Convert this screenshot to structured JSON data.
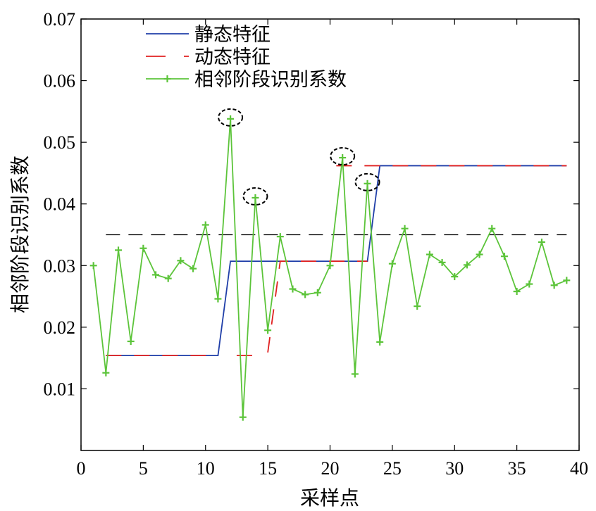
{
  "chart_data": {
    "type": "line",
    "xlabel": "采样点",
    "ylabel": "相邻阶段识别系数",
    "xlim": [
      0,
      40
    ],
    "ylim": [
      0,
      0.07
    ],
    "x_ticks": [
      "0",
      "5",
      "10",
      "15",
      "20",
      "25",
      "30",
      "35",
      "40"
    ],
    "y_ticks": [
      "0.01",
      "0.02",
      "0.03",
      "0.04",
      "0.05",
      "0.06",
      "0.07"
    ],
    "legend_position": "top-left",
    "threshold": {
      "y": 0.035,
      "x": [
        2,
        39
      ],
      "color": "#000000",
      "style": "dashed"
    },
    "series": [
      {
        "name": "静态特征",
        "color": "#1f3ea8",
        "style": "solid",
        "points": [
          [
            2,
            0.0154
          ],
          [
            11,
            0.0154
          ],
          [
            12,
            0.0307
          ],
          [
            23,
            0.0307
          ],
          [
            24,
            0.0462
          ],
          [
            39,
            0.0462
          ]
        ]
      },
      {
        "name": "动态特征",
        "color": "#e02020",
        "style": "dashed",
        "segments": [
          [
            [
              2,
              0.0154
            ],
            [
              11,
              0.0154
            ]
          ],
          [
            [
              12.5,
              0.0154
            ],
            [
              14,
              0.0154
            ]
          ],
          [
            [
              15,
              0.0159
            ],
            [
              16,
              0.0307
            ],
            [
              23,
              0.0307
            ]
          ],
          [
            [
              20.5,
              0.0462
            ],
            [
              39,
              0.0462
            ]
          ]
        ]
      },
      {
        "name": "相邻阶段识别系数",
        "color": "#5cc43a",
        "style": "solid-marker",
        "x": [
          1,
          2,
          3,
          4,
          5,
          6,
          7,
          8,
          9,
          10,
          11,
          12,
          13,
          14,
          15,
          16,
          17,
          18,
          19,
          20,
          21,
          22,
          23,
          24,
          25,
          26,
          27,
          28,
          29,
          30,
          31,
          32,
          33,
          34,
          35,
          36,
          37,
          38,
          39
        ],
        "values": [
          0.03,
          0.0126,
          0.0325,
          0.0177,
          0.0328,
          0.0285,
          0.0279,
          0.0308,
          0.0295,
          0.0366,
          0.0246,
          0.0538,
          0.0054,
          0.041,
          0.0195,
          0.0347,
          0.0262,
          0.0253,
          0.0256,
          0.03,
          0.0475,
          0.0124,
          0.0433,
          0.0176,
          0.0303,
          0.036,
          0.0234,
          0.0318,
          0.0305,
          0.0282,
          0.0301,
          0.0318,
          0.036,
          0.0315,
          0.0258,
          0.027,
          0.0338,
          0.0268,
          0.0276
        ]
      }
    ],
    "highlighted_points": [
      12,
      14,
      21,
      23
    ]
  }
}
